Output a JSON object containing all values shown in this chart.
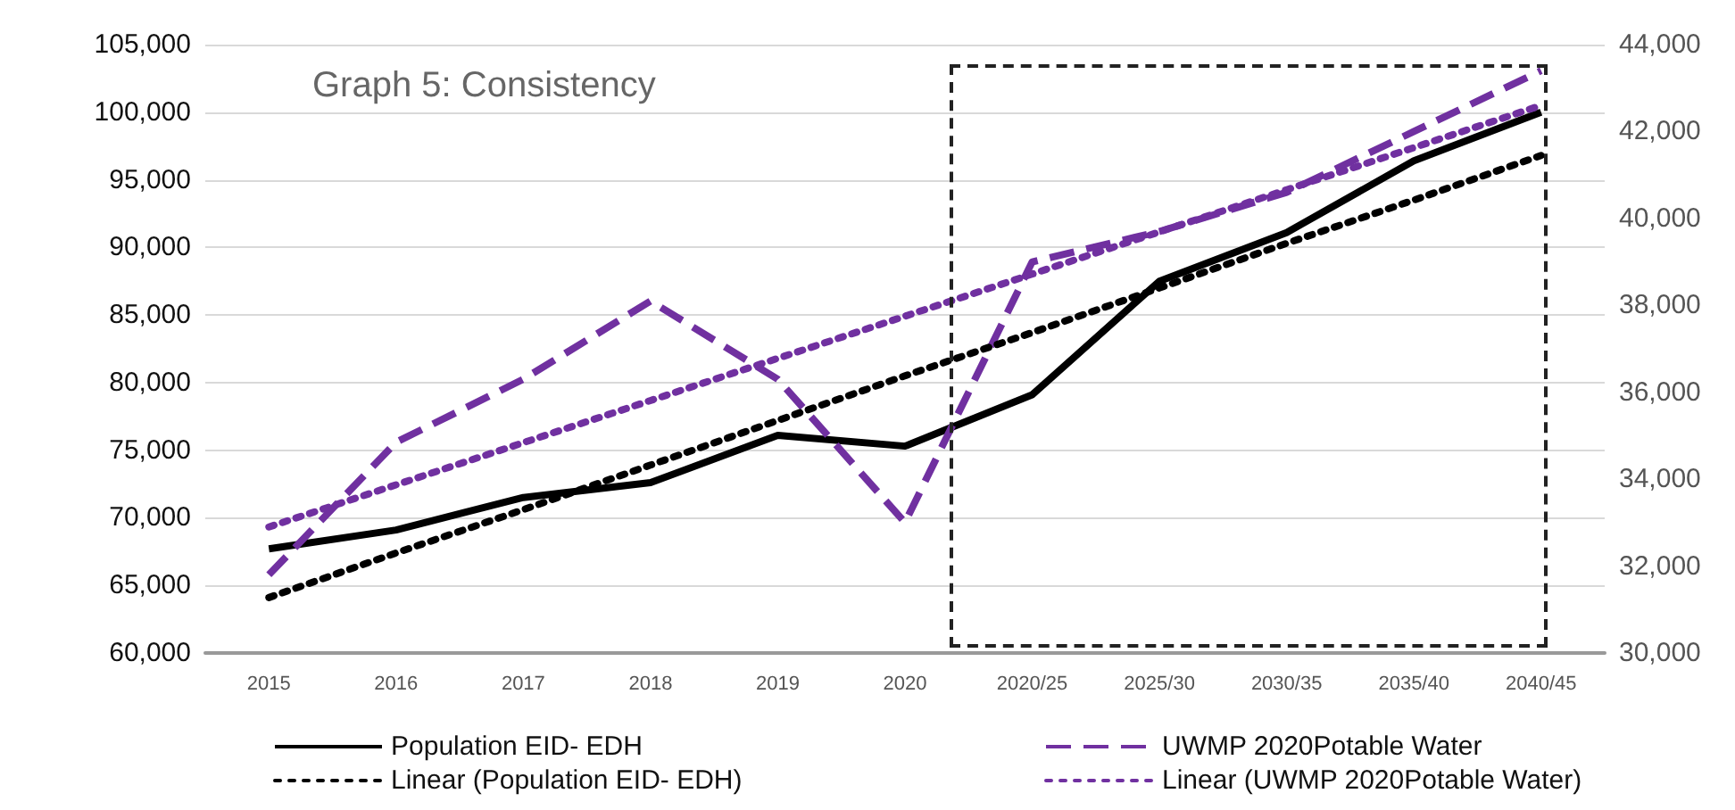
{
  "chart_data": {
    "type": "line",
    "title": "Graph 5: Consistency",
    "categories": [
      "2015",
      "2016",
      "2017",
      "2018",
      "2019",
      "2020",
      "2020/25",
      "2025/30",
      "2030/35",
      "2035/40",
      "2040/45"
    ],
    "series": [
      {
        "name": "Population EID- EDH",
        "color": "#000000",
        "line_style": "solid",
        "values": [
          67700,
          69100,
          71500,
          72600,
          76100,
          75300,
          79100,
          87500,
          91100,
          96400,
          100000
        ]
      },
      {
        "name": "UWMP 2020Potable Water",
        "color": "#7030a0",
        "line_style": "dashed",
        "axis": "y2",
        "values": [
          31800,
          34850,
          36300,
          38100,
          36300,
          33000,
          39000,
          39700,
          40600,
          42000,
          43400
        ]
      },
      {
        "name": "Linear (Population EID- EDH)",
        "color": "#000000",
        "line_style": "dotted",
        "values": [
          64100,
          67400,
          70600,
          73900,
          77200,
          80500,
          83700,
          87000,
          90300,
          93500,
          96800
        ]
      },
      {
        "name": "Linear (UWMP 2020Potable Water)",
        "color": "#7030a0",
        "line_style": "dotted",
        "axis": "y2",
        "values": [
          32900,
          33870,
          34840,
          35810,
          36780,
          37750,
          38720,
          39690,
          40660,
          41630,
          42600
        ]
      }
    ],
    "ylim": [
      60000,
      105000
    ],
    "yticks": [
      {
        "value": 60000,
        "label": "60,000"
      },
      {
        "value": 65000,
        "label": "65,000"
      },
      {
        "value": 70000,
        "label": "70,000"
      },
      {
        "value": 75000,
        "label": "75,000"
      },
      {
        "value": 80000,
        "label": "80,000"
      },
      {
        "value": 85000,
        "label": "85,000"
      },
      {
        "value": 90000,
        "label": "90,000"
      },
      {
        "value": 95000,
        "label": "95,000"
      },
      {
        "value": 100000,
        "label": "100,000"
      },
      {
        "value": 105000,
        "label": "105,000"
      }
    ],
    "y2lim": [
      30000,
      44000
    ],
    "y2ticks": [
      {
        "value": 30000,
        "label": "30,000"
      },
      {
        "value": 32000,
        "label": "32,000"
      },
      {
        "value": 34000,
        "label": "34,000"
      },
      {
        "value": 36000,
        "label": "36,000"
      },
      {
        "value": 38000,
        "label": "38,000"
      },
      {
        "value": 40000,
        "label": "40,000"
      },
      {
        "value": 42000,
        "label": "42,000"
      },
      {
        "value": 44000,
        "label": "44,000"
      }
    ],
    "grid": "y",
    "legend": "bottom",
    "marker": "none"
  }
}
